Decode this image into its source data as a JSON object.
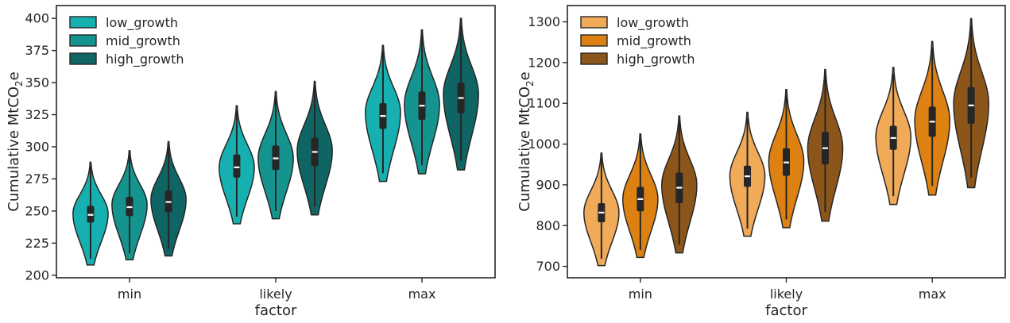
{
  "chart_data": [
    {
      "type": "violin",
      "xlabel": "factor",
      "ylabel_main": "Cumulative MtCO",
      "ylabel_sub": "2",
      "ylabel_tail": "e",
      "categories": [
        "min",
        "likely",
        "max"
      ],
      "ylim": [
        198,
        410
      ],
      "yticks": [
        200,
        225,
        250,
        275,
        300,
        325,
        350,
        375,
        400
      ],
      "legend_position": "top-left",
      "series": [
        {
          "name": "low_growth",
          "color": "#17b0b0",
          "violins": [
            {
              "min": 208,
              "max": 288,
              "q1": 241,
              "median": 247,
              "q3": 254,
              "mode": 248
            },
            {
              "min": 240,
              "max": 332,
              "q1": 276,
              "median": 284,
              "q3": 294,
              "mode": 284
            },
            {
              "min": 273,
              "max": 379,
              "q1": 314,
              "median": 324,
              "q3": 334,
              "mode": 327
            }
          ]
        },
        {
          "name": "mid_growth",
          "color": "#15938f",
          "violins": [
            {
              "min": 212,
              "max": 297,
              "q1": 246,
              "median": 253,
              "q3": 261,
              "mode": 255
            },
            {
              "min": 244,
              "max": 343,
              "q1": 282,
              "median": 291,
              "q3": 301,
              "mode": 291
            },
            {
              "min": 279,
              "max": 391,
              "q1": 321,
              "median": 332,
              "q3": 343,
              "mode": 333
            }
          ]
        },
        {
          "name": "high_growth",
          "color": "#0f6563",
          "violins": [
            {
              "min": 215,
              "max": 304,
              "q1": 249,
              "median": 257,
              "q3": 266,
              "mode": 259
            },
            {
              "min": 247,
              "max": 351,
              "q1": 285,
              "median": 296,
              "q3": 307,
              "mode": 297
            },
            {
              "min": 282,
              "max": 400,
              "q1": 326,
              "median": 338,
              "q3": 350,
              "mode": 341
            }
          ]
        }
      ]
    },
    {
      "type": "violin",
      "xlabel": "factor",
      "ylabel_main": "Cumulative MtCO",
      "ylabel_sub": "2",
      "ylabel_tail": "e",
      "categories": [
        "min",
        "likely",
        "max"
      ],
      "ylim": [
        672,
        1340
      ],
      "yticks": [
        700,
        800,
        900,
        1000,
        1100,
        1200,
        1300
      ],
      "legend_position": "top-left",
      "series": [
        {
          "name": "low_growth",
          "color": "#f0aa58",
          "violins": [
            {
              "min": 702,
              "max": 978,
              "q1": 808,
              "median": 832,
              "q3": 855,
              "mode": 832
            },
            {
              "min": 774,
              "max": 1078,
              "q1": 895,
              "median": 921,
              "q3": 947,
              "mode": 922
            },
            {
              "min": 852,
              "max": 1188,
              "q1": 986,
              "median": 1015,
              "q3": 1045,
              "mode": 1018
            }
          ]
        },
        {
          "name": "mid_growth",
          "color": "#dd8212",
          "violins": [
            {
              "min": 722,
              "max": 1025,
              "q1": 835,
              "median": 865,
              "q3": 895,
              "mode": 865
            },
            {
              "min": 795,
              "max": 1134,
              "q1": 922,
              "median": 955,
              "q3": 990,
              "mode": 958
            },
            {
              "min": 875,
              "max": 1252,
              "q1": 1018,
              "median": 1055,
              "q3": 1092,
              "mode": 1058
            }
          ]
        },
        {
          "name": "high_growth",
          "color": "#8c561a",
          "violins": [
            {
              "min": 733,
              "max": 1069,
              "q1": 855,
              "median": 893,
              "q3": 930,
              "mode": 900
            },
            {
              "min": 811,
              "max": 1183,
              "q1": 950,
              "median": 990,
              "q3": 1030,
              "mode": 990
            },
            {
              "min": 893,
              "max": 1308,
              "q1": 1050,
              "median": 1095,
              "q3": 1140,
              "mode": 1100
            }
          ]
        }
      ]
    }
  ]
}
